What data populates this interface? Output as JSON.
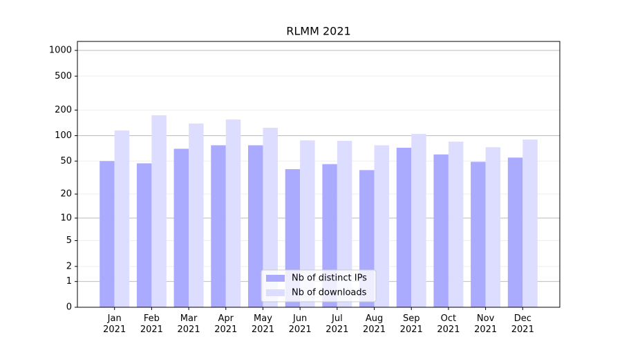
{
  "chart_data": {
    "type": "bar",
    "title": "RLMM 2021",
    "categories": [
      "Jan 2021",
      "Feb 2021",
      "Mar 2021",
      "Apr 2021",
      "May 2021",
      "Jun 2021",
      "Jul 2021",
      "Aug 2021",
      "Sep 2021",
      "Oct 2021",
      "Nov 2021",
      "Dec 2021"
    ],
    "series": [
      {
        "name": "Nb of distinct IPs",
        "color": "#aaaaff",
        "values": [
          50,
          47,
          70,
          77,
          77,
          40,
          46,
          39,
          72,
          60,
          49,
          55
        ]
      },
      {
        "name": "Nb of downloads",
        "color": "#ddddff",
        "values": [
          115,
          174,
          139,
          155,
          124,
          88,
          87,
          77,
          105,
          85,
          73,
          90
        ]
      }
    ],
    "yscale": "log1p",
    "ylim": [
      0,
      1273
    ],
    "yticks": [
      0,
      1,
      2,
      5,
      10,
      20,
      50,
      100,
      200,
      500,
      1000
    ],
    "grid": true,
    "legend": "lower center"
  }
}
